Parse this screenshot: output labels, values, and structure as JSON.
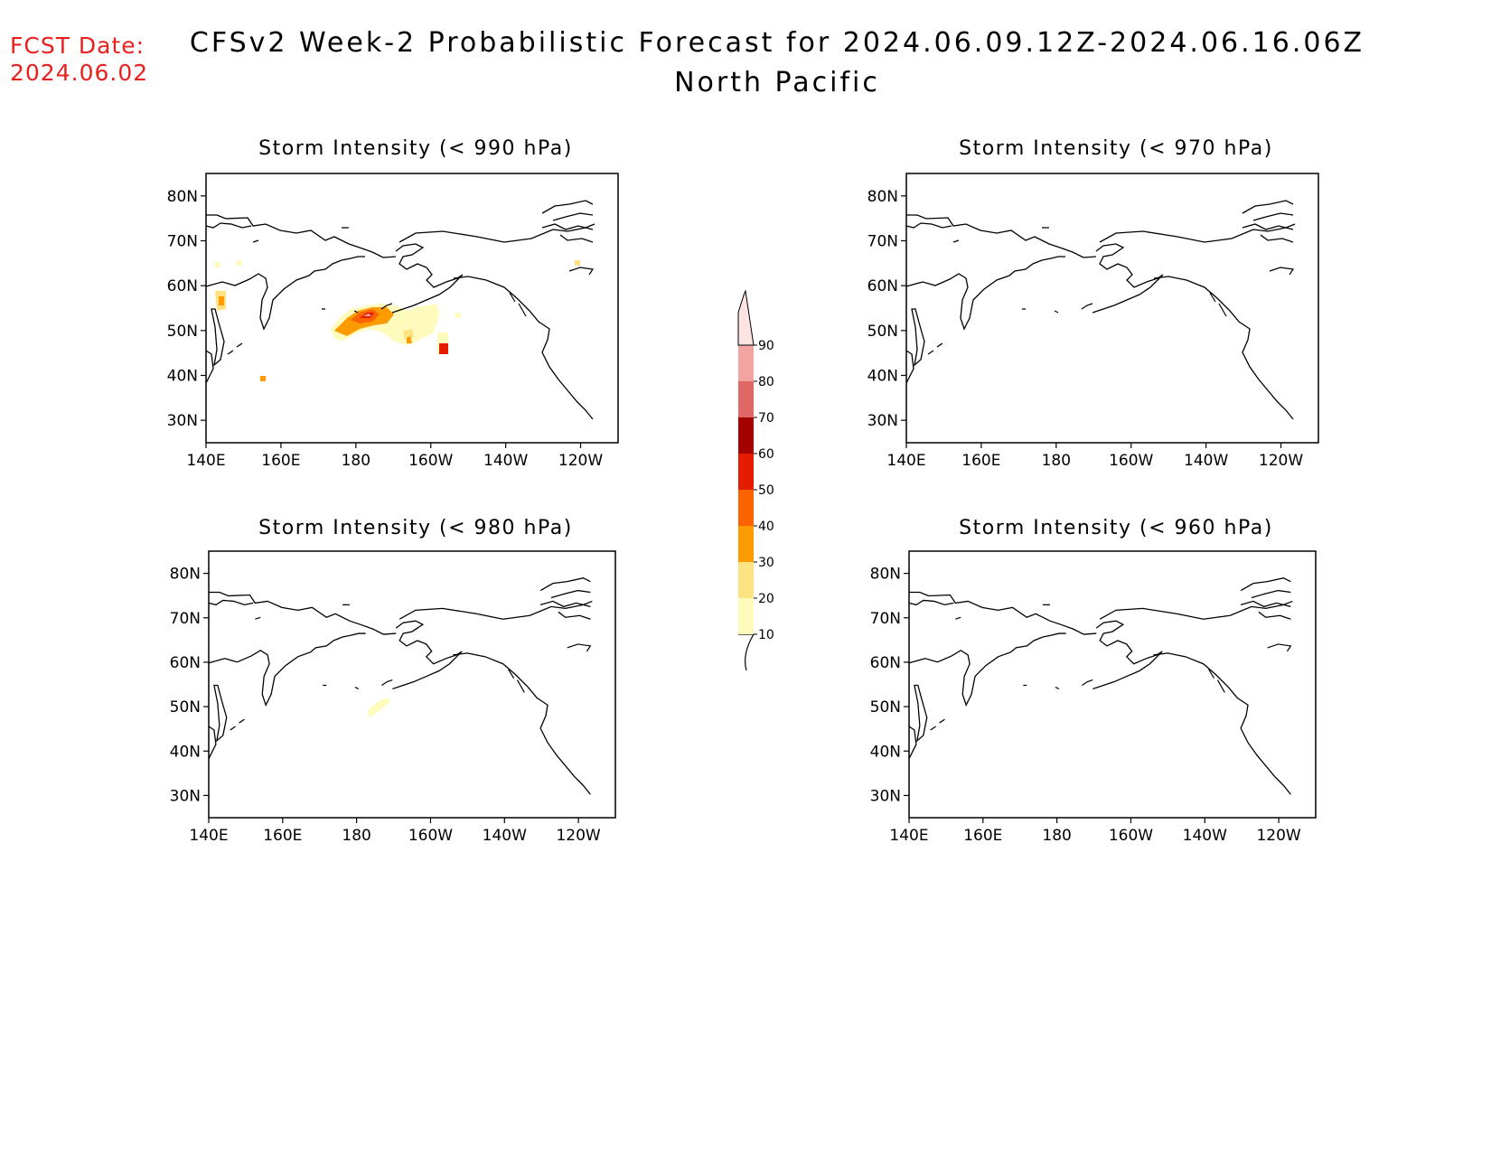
{
  "header": {
    "fcst_label": "FCST Date:",
    "fcst_date": "2024.06.02",
    "title": "CFSv2 Week-2 Probabilistic Forecast for 2024.06.09.12Z-2024.06.16.06Z",
    "subtitle": "North Pacific"
  },
  "panels": [
    {
      "title": "Storm Intensity (< 990 hPa)"
    },
    {
      "title": "Storm Intensity (< 970 hPa)"
    },
    {
      "title": "Storm Intensity (< 980 hPa)"
    },
    {
      "title": "Storm Intensity (< 960 hPa)"
    }
  ],
  "axes": {
    "lat_labels": [
      "80N",
      "70N",
      "60N",
      "50N",
      "40N",
      "30N"
    ],
    "lon_labels": [
      "140E",
      "160E",
      "180",
      "160W",
      "140W",
      "120W"
    ]
  },
  "colorbar": {
    "levels": [
      "10",
      "20",
      "30",
      "40",
      "50",
      "60",
      "70",
      "80",
      "90"
    ],
    "colors": [
      "#fefbbd",
      "#fee383",
      "#fd9b01",
      "#fd6301",
      "#e41c00",
      "#a50000",
      "#df6766",
      "#f4a3a3",
      "#fee3e3"
    ]
  }
}
